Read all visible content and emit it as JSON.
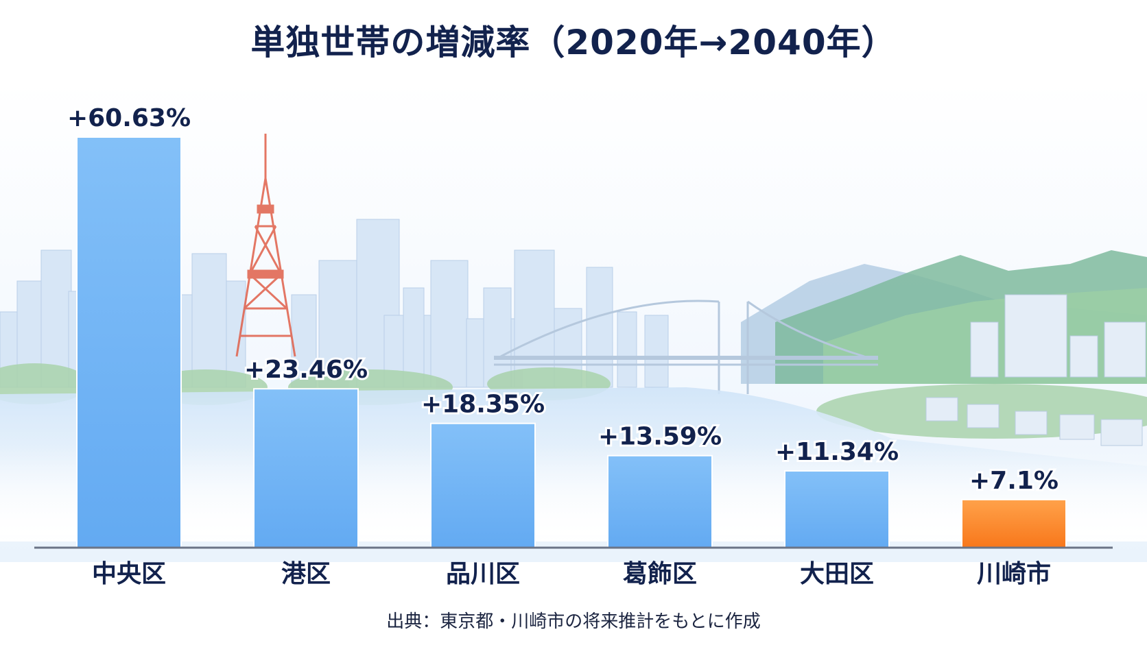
{
  "chart_data": {
    "type": "bar",
    "title": "単独世帯の増減率（2020年→2040年）",
    "categories": [
      "中央区",
      "港区",
      "品川区",
      "葛飾区",
      "大田区",
      "川崎市"
    ],
    "values": [
      60.63,
      23.46,
      18.35,
      13.59,
      11.34,
      7.1
    ],
    "value_labels": [
      "+60.63%",
      "+23.46%",
      "+18.35%",
      "+13.59%",
      "+11.34%",
      "+7.1%"
    ],
    "bar_colors": [
      "#74b6f6",
      "#74b6f6",
      "#74b6f6",
      "#74b6f6",
      "#74b6f6",
      "#f9862a"
    ],
    "highlight_category": "川崎市",
    "ylim": [
      0,
      60.63
    ],
    "xlabel": "",
    "ylabel": "",
    "grid": false,
    "legend": "none",
    "source": "出典：東京都・川崎市の将来推計をもとに作成"
  },
  "colors": {
    "title": "#12224d",
    "bar": "#74b6f6",
    "highlight": "#f9862a",
    "axis": "#6b7486",
    "label": "#12224d"
  },
  "background": {
    "description_icon": "cityscape-tokyo-tower-bridge-mountains"
  }
}
